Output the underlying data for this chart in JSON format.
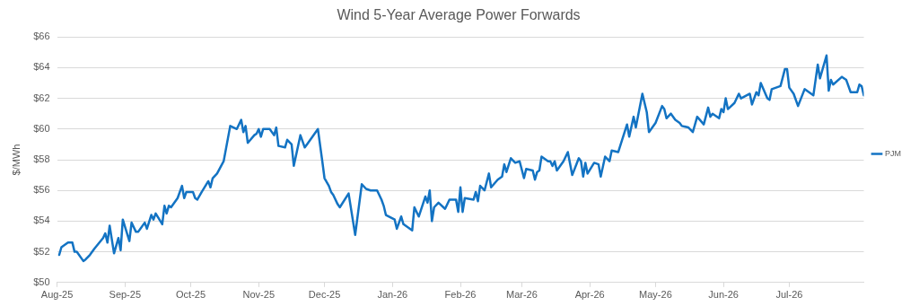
{
  "chart_data": {
    "type": "line",
    "title": "Wind 5-Year Average Power Forwards",
    "ylabel": "$/MWh",
    "xlim": [
      "2025-08-01",
      "2026-08-04"
    ],
    "xticks": [
      {
        "value": "2025-08-01",
        "label": "Aug-25"
      },
      {
        "value": "2025-09-01",
        "label": "Sep-25"
      },
      {
        "value": "2025-10-01",
        "label": "Oct-25"
      },
      {
        "value": "2025-11-01",
        "label": "Nov-25"
      },
      {
        "value": "2025-12-01",
        "label": "Dec-25"
      },
      {
        "value": "2026-01-01",
        "label": "Jan-26"
      },
      {
        "value": "2026-02-01",
        "label": "Feb-26"
      },
      {
        "value": "2026-03-01",
        "label": "Mar-26"
      },
      {
        "value": "2026-04-01",
        "label": "Apr-26"
      },
      {
        "value": "2026-05-01",
        "label": "May-26"
      },
      {
        "value": "2026-06-01",
        "label": "Jun-26"
      },
      {
        "value": "2026-07-01",
        "label": "Jul-26"
      }
    ],
    "ylim": [
      50,
      66
    ],
    "yticks": [
      {
        "value": 50,
        "label": "$50"
      },
      {
        "value": 52,
        "label": "$52"
      },
      {
        "value": 54,
        "label": "$54"
      },
      {
        "value": 56,
        "label": "$56"
      },
      {
        "value": 58,
        "label": "$58"
      },
      {
        "value": 60,
        "label": "$60"
      },
      {
        "value": 62,
        "label": "$62"
      },
      {
        "value": 64,
        "label": "$64"
      },
      {
        "value": 66,
        "label": "$66"
      }
    ],
    "grid": "y",
    "legend": "right",
    "marker": "none",
    "line_style": "solid",
    "series": [
      {
        "name": "PJM",
        "color": "#1373c3",
        "x": [
          "2025-08-02",
          "2025-08-03",
          "2025-08-06",
          "2025-08-08",
          "2025-08-09",
          "2025-08-10",
          "2025-08-13",
          "2025-08-14",
          "2025-08-16",
          "2025-08-18",
          "2025-08-22",
          "2025-08-23",
          "2025-08-24",
          "2025-08-25",
          "2025-08-27",
          "2025-08-29",
          "2025-08-30",
          "2025-08-31",
          "2025-09-03",
          "2025-09-04",
          "2025-09-06",
          "2025-09-07",
          "2025-09-10",
          "2025-09-11",
          "2025-09-13",
          "2025-09-14",
          "2025-09-15",
          "2025-09-18",
          "2025-09-19",
          "2025-09-20",
          "2025-09-21",
          "2025-09-22",
          "2025-09-25",
          "2025-09-27",
          "2025-09-28",
          "2025-09-29",
          "2025-10-02",
          "2025-10-03",
          "2025-10-04",
          "2025-10-06",
          "2025-10-09",
          "2025-10-10",
          "2025-10-11",
          "2025-10-13",
          "2025-10-16",
          "2025-10-19",
          "2025-10-22",
          "2025-10-24",
          "2025-10-25",
          "2025-10-26",
          "2025-10-27",
          "2025-10-30",
          "2025-10-31",
          "2025-11-01",
          "2025-11-02",
          "2025-11-03",
          "2025-11-06",
          "2025-11-08",
          "2025-11-09",
          "2025-11-10",
          "2025-11-13",
          "2025-11-14",
          "2025-11-16",
          "2025-11-17",
          "2025-11-20",
          "2025-11-22",
          "2025-11-23",
          "2025-11-28",
          "2025-11-30",
          "2025-12-01",
          "2025-12-03",
          "2025-12-04",
          "2025-12-05",
          "2025-12-07",
          "2025-12-08",
          "2025-12-12",
          "2025-12-15",
          "2025-12-18",
          "2025-12-20",
          "2025-12-22",
          "2025-12-25",
          "2025-12-27",
          "2025-12-28",
          "2025-12-29",
          "2026-01-02",
          "2026-01-03",
          "2026-01-05",
          "2026-01-06",
          "2026-01-10",
          "2026-01-11",
          "2026-01-13",
          "2026-01-16",
          "2026-01-17",
          "2026-01-18",
          "2026-01-19",
          "2026-01-20",
          "2026-01-22",
          "2026-01-25",
          "2026-01-27",
          "2026-01-30",
          "2026-01-31",
          "2026-02-01",
          "2026-02-02",
          "2026-02-03",
          "2026-02-07",
          "2026-02-08",
          "2026-02-09",
          "2026-02-10",
          "2026-02-12",
          "2026-02-14",
          "2026-02-15",
          "2026-02-18",
          "2026-02-20",
          "2026-02-21",
          "2026-02-22",
          "2026-02-24",
          "2026-02-26",
          "2026-02-28",
          "2026-03-02",
          "2026-03-03",
          "2026-03-06",
          "2026-03-07",
          "2026-03-08",
          "2026-03-09",
          "2026-03-10",
          "2026-03-13",
          "2026-03-14",
          "2026-03-15",
          "2026-03-16",
          "2026-03-17",
          "2026-03-20",
          "2026-03-22",
          "2026-03-24",
          "2026-03-27",
          "2026-03-28",
          "2026-03-29",
          "2026-03-30",
          "2026-03-31",
          "2026-04-03",
          "2026-04-05",
          "2026-04-06",
          "2026-04-08",
          "2026-04-10",
          "2026-04-11",
          "2026-04-14",
          "2026-04-18",
          "2026-04-19",
          "2026-04-21",
          "2026-04-22",
          "2026-04-25",
          "2026-04-27",
          "2026-04-28",
          "2026-05-01",
          "2026-05-04",
          "2026-05-05",
          "2026-05-06",
          "2026-05-08",
          "2026-05-10",
          "2026-05-12",
          "2026-05-13",
          "2026-05-16",
          "2026-05-18",
          "2026-05-20",
          "2026-05-23",
          "2026-05-25",
          "2026-05-26",
          "2026-05-27",
          "2026-05-30",
          "2026-05-31",
          "2026-06-01",
          "2026-06-02",
          "2026-06-03",
          "2026-06-06",
          "2026-06-08",
          "2026-06-09",
          "2026-06-13",
          "2026-06-14",
          "2026-06-16",
          "2026-06-17",
          "2026-06-18",
          "2026-06-21",
          "2026-06-22",
          "2026-06-23",
          "2026-06-27",
          "2026-06-29",
          "2026-06-30",
          "2026-07-01",
          "2026-07-03",
          "2026-07-05",
          "2026-07-08",
          "2026-07-12",
          "2026-07-14",
          "2026-07-15",
          "2026-07-18",
          "2026-07-19",
          "2026-07-20",
          "2026-07-21",
          "2026-07-25",
          "2026-07-27",
          "2026-07-29",
          "2026-08-01",
          "2026-08-02",
          "2026-08-03",
          "2026-08-04"
        ],
        "values": [
          51.8,
          52.3,
          52.6,
          52.6,
          52.0,
          52.0,
          51.4,
          51.5,
          51.8,
          52.2,
          52.9,
          53.2,
          52.6,
          53.7,
          51.9,
          52.9,
          52.1,
          54.1,
          52.7,
          53.9,
          53.3,
          53.3,
          53.9,
          53.5,
          54.4,
          54.1,
          54.5,
          53.8,
          55.0,
          54.5,
          55.0,
          54.9,
          55.5,
          56.3,
          55.5,
          55.9,
          55.9,
          55.5,
          55.4,
          55.9,
          56.6,
          56.2,
          56.8,
          57.1,
          57.9,
          60.2,
          60.0,
          60.6,
          59.8,
          60.2,
          59.1,
          59.6,
          59.7,
          60.0,
          59.5,
          60.0,
          60.0,
          59.6,
          60.1,
          58.9,
          58.8,
          59.3,
          59.0,
          57.6,
          59.6,
          58.8,
          59.0,
          60.0,
          57.9,
          56.8,
          56.3,
          55.9,
          55.7,
          55.1,
          54.9,
          55.8,
          53.1,
          56.4,
          56.1,
          56.0,
          56.0,
          55.4,
          55.0,
          54.4,
          54.1,
          53.5,
          54.3,
          53.8,
          53.4,
          54.9,
          54.3,
          55.6,
          55.2,
          56.0,
          54.0,
          54.9,
          55.2,
          54.8,
          55.4,
          55.4,
          54.6,
          56.2,
          54.6,
          55.5,
          55.4,
          55.9,
          55.3,
          56.3,
          56.0,
          57.1,
          56.2,
          56.7,
          56.9,
          57.7,
          57.2,
          58.1,
          57.8,
          57.9,
          56.8,
          57.4,
          57.3,
          56.7,
          57.2,
          57.3,
          58.2,
          57.9,
          57.9,
          57.6,
          57.9,
          57.3,
          57.9,
          58.5,
          57.0,
          58.1,
          57.9,
          56.9,
          57.8,
          57.1,
          57.8,
          57.7,
          56.9,
          58.2,
          57.9,
          58.6,
          58.5,
          60.3,
          59.5,
          60.8,
          60.1,
          62.3,
          61.1,
          59.8,
          60.4,
          61.5,
          61.3,
          60.7,
          61.0,
          60.6,
          60.4,
          60.2,
          60.1,
          59.8,
          60.8,
          60.3,
          61.4,
          60.8,
          61.0,
          60.7,
          61.3,
          61.1,
          62.0,
          61.3,
          61.7,
          62.3,
          62.0,
          62.3,
          61.6,
          62.4,
          62.2,
          63.0,
          62.0,
          61.9,
          62.6,
          62.8,
          63.9,
          63.9,
          62.7,
          62.3,
          61.5,
          62.6,
          62.2,
          64.2,
          63.3,
          64.8,
          62.5,
          63.2,
          62.9,
          63.4,
          63.2,
          62.4,
          62.4,
          62.9,
          62.8,
          62.2
        ]
      }
    ]
  }
}
